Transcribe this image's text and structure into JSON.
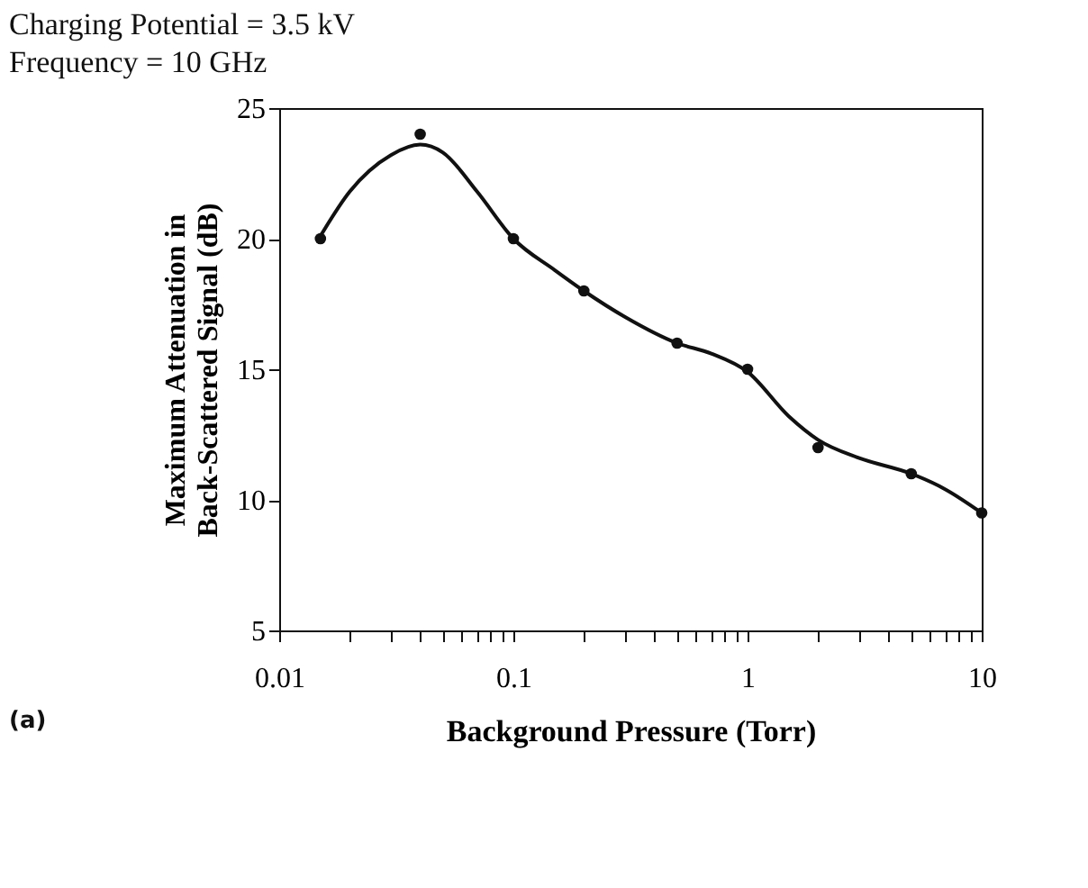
{
  "chart_data": {
    "type": "scatter",
    "title": "Charging Potential = 3.5 kV",
    "subtitle": "Frequency = 10 GHz",
    "xlabel": "Background Pressure (Torr)",
    "ylabel": "Maximum Attenuation in\nBack-Scattered Signal (dB)",
    "annotations": [
      "(a)"
    ],
    "log": "x",
    "grid": false,
    "marker": "circle",
    "xlim": [
      0.01,
      10
    ],
    "ylim": [
      5,
      25
    ],
    "xticks": [
      0.01,
      {
        "value": 0.02,
        "label": null
      },
      {
        "value": 0.03,
        "label": null
      },
      {
        "value": 0.04,
        "label": null
      },
      {
        "value": 0.05,
        "label": null
      },
      {
        "value": 0.06,
        "label": null
      },
      {
        "value": 0.07,
        "label": null
      },
      {
        "value": 0.08,
        "label": null
      },
      {
        "value": 0.09,
        "label": null
      },
      0.1,
      {
        "value": 0.2,
        "label": null
      },
      {
        "value": 0.3,
        "label": null
      },
      {
        "value": 0.4,
        "label": null
      },
      {
        "value": 0.5,
        "label": null
      },
      {
        "value": 0.6,
        "label": null
      },
      {
        "value": 0.7,
        "label": null
      },
      {
        "value": 0.8,
        "label": null
      },
      {
        "value": 0.9,
        "label": null
      },
      1,
      {
        "value": 2,
        "label": null
      },
      {
        "value": 3,
        "label": null
      },
      {
        "value": 4,
        "label": null
      },
      {
        "value": 5,
        "label": null
      },
      {
        "value": 6,
        "label": null
      },
      {
        "value": 7,
        "label": null
      },
      {
        "value": 8,
        "label": null
      },
      {
        "value": 9,
        "label": null
      },
      10
    ],
    "yticks": [
      5,
      10,
      15,
      20,
      25
    ],
    "series": [
      {
        "color": "#111111",
        "x": [
          0.015,
          0.04,
          0.1,
          0.2,
          0.5,
          1,
          2,
          5,
          10
        ],
        "values": [
          20,
          24,
          20,
          18,
          16,
          15,
          12,
          11,
          9.5
        ]
      },
      {
        "type": "line",
        "color": "#111111",
        "line_style": "solid",
        "marker": "none",
        "x": [
          0.015,
          0.02,
          0.03,
          0.04,
          0.05,
          0.07,
          0.1,
          0.15,
          0.2,
          0.3,
          0.5,
          0.7,
          1,
          1.5,
          2,
          3,
          5,
          7,
          10
        ],
        "values": [
          20.1,
          21.8,
          23.2,
          23.6,
          23.3,
          21.8,
          20.0,
          18.8,
          18.0,
          17.0,
          16.0,
          15.6,
          14.9,
          13.2,
          12.3,
          11.6,
          11.0,
          10.4,
          9.5
        ]
      }
    ]
  }
}
